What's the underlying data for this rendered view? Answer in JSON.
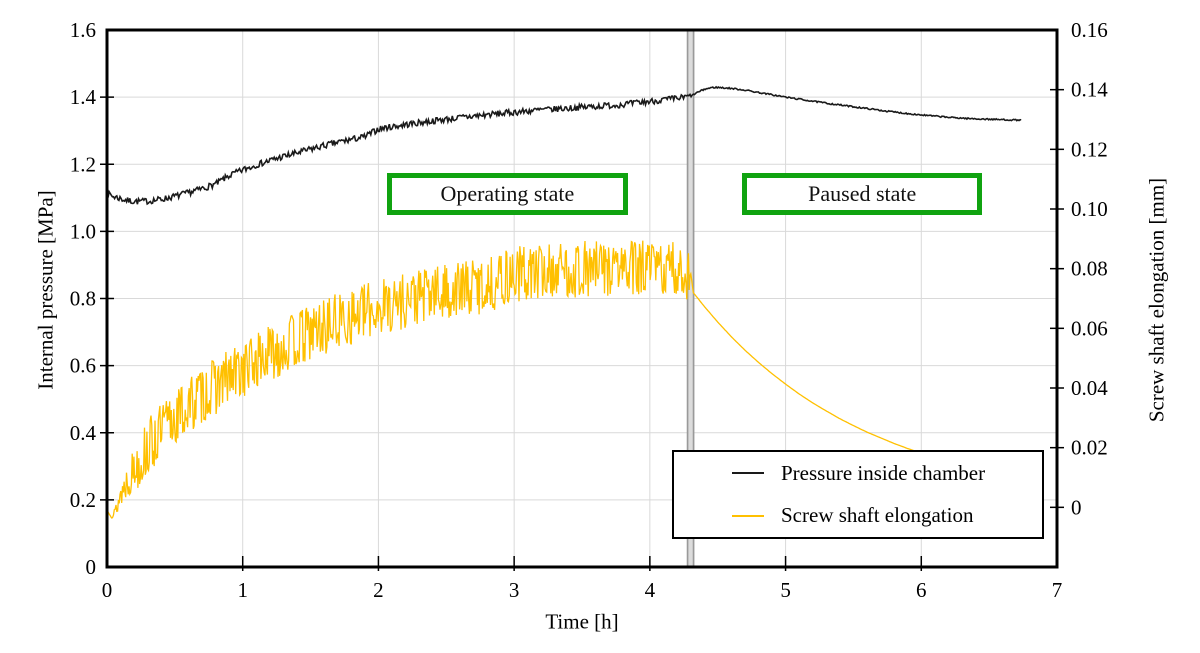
{
  "chart_data": {
    "type": "line",
    "title": "",
    "xlabel": "Time [h]",
    "xlim": [
      0,
      7
    ],
    "x_ticks": [
      0,
      1,
      2,
      3,
      4,
      5,
      6,
      7
    ],
    "grid": {
      "visible": true,
      "color": "#d9d9d9"
    },
    "axes": {
      "left": {
        "label": "Internal pressure [MPa]",
        "lim": [
          0,
          1.6
        ],
        "tick_step": 0.2,
        "ticks": [
          "0",
          "0.2",
          "0.4",
          "0.6",
          "0.8",
          "1.0",
          "1.2",
          "1.4",
          "1.6"
        ]
      },
      "right": {
        "label": "Screw shaft elongation [mm]",
        "lim": [
          -0.02,
          0.16
        ],
        "tick_step": 0.02,
        "ticks": [
          "0",
          "0.02",
          "0.04",
          "0.06",
          "0.08",
          "0.10",
          "0.12",
          "0.14",
          "0.16"
        ]
      }
    },
    "pause_marker": {
      "x": 4.3,
      "style": "double-vertical-line",
      "edge_color": "#9a9a9a",
      "inner_color": "#dcdcdc"
    },
    "annotations": [
      {
        "label": "Operating state",
        "border_color": "#10a310",
        "x_range": [
          2.06,
          3.84
        ],
        "y_left_range": [
          1.048,
          1.175
        ]
      },
      {
        "label": "Paused state",
        "border_color": "#10a310",
        "x_range": [
          4.68,
          6.45
        ],
        "y_left_range": [
          1.048,
          1.175
        ]
      }
    ],
    "legend": {
      "position": "bottom-right",
      "entries": [
        {
          "label": "Pressure inside chamber",
          "color": "#1a1a1a"
        },
        {
          "label": "Screw shaft elongation",
          "color": "#ffc000"
        }
      ]
    },
    "series": [
      {
        "name": "Pressure inside chamber",
        "axis": "left",
        "unit": "MPa",
        "color": "#1a1a1a",
        "stroke_width": 1.6,
        "noise": [
          {
            "until": 4.3,
            "amp": 0.009
          },
          {
            "until": 7,
            "amp": 0.002
          }
        ],
        "noise_ramp": 0,
        "anchors": [
          [
            0,
            1.112
          ],
          [
            0.07,
            1.101
          ],
          [
            0.15,
            1.092
          ],
          [
            0.22,
            1.089
          ],
          [
            0.3,
            1.09
          ],
          [
            0.4,
            1.096
          ],
          [
            0.5,
            1.104
          ],
          [
            0.6,
            1.115
          ],
          [
            0.7,
            1.127
          ],
          [
            0.8,
            1.141
          ],
          [
            0.9,
            1.166
          ],
          [
            1.0,
            1.183
          ],
          [
            1.1,
            1.198
          ],
          [
            1.2,
            1.211
          ],
          [
            1.3,
            1.223
          ],
          [
            1.4,
            1.234
          ],
          [
            1.5,
            1.245
          ],
          [
            1.6,
            1.2555
          ],
          [
            1.7,
            1.265
          ],
          [
            1.8,
            1.274
          ],
          [
            1.9,
            1.282
          ],
          [
            2.0,
            1.305
          ],
          [
            2.1,
            1.312
          ],
          [
            2.2,
            1.318
          ],
          [
            2.35,
            1.3265
          ],
          [
            2.5,
            1.334
          ],
          [
            2.65,
            1.341
          ],
          [
            2.8,
            1.3475
          ],
          [
            3.0,
            1.355
          ],
          [
            3.2,
            1.3615
          ],
          [
            3.4,
            1.367
          ],
          [
            3.6,
            1.3725
          ],
          [
            3.8,
            1.378
          ],
          [
            4.0,
            1.387
          ],
          [
            4.15,
            1.394
          ],
          [
            4.25,
            1.399
          ],
          [
            4.3,
            1.402
          ],
          [
            4.34,
            1.412
          ],
          [
            4.4,
            1.423
          ],
          [
            4.45,
            1.428
          ],
          [
            4.5,
            1.429
          ],
          [
            4.6,
            1.426
          ],
          [
            4.7,
            1.421
          ],
          [
            4.8,
            1.414
          ],
          [
            4.9,
            1.407
          ],
          [
            5.0,
            1.4
          ],
          [
            5.15,
            1.391
          ],
          [
            5.3,
            1.382
          ],
          [
            5.45,
            1.374
          ],
          [
            5.6,
            1.366
          ],
          [
            5.75,
            1.358
          ],
          [
            5.9,
            1.351
          ],
          [
            6.05,
            1.345
          ],
          [
            6.2,
            1.34
          ],
          [
            6.35,
            1.336
          ],
          [
            6.5,
            1.334
          ],
          [
            6.6,
            1.333
          ],
          [
            6.74,
            1.331
          ]
        ]
      },
      {
        "name": "Screw shaft elongation",
        "axis": "right",
        "unit": "mm",
        "color": "#ffc000",
        "stroke_width": 1.3,
        "noise": [
          {
            "until": 4.3,
            "amp": 0.0095
          },
          {
            "until": 7,
            "amp": 0
          }
        ],
        "noise_ramp": 0.25,
        "anchors": [
          [
            0,
            -0.001
          ],
          [
            0.05,
            -0.003
          ],
          [
            0.1,
            0.004
          ],
          [
            0.15,
            0.009
          ],
          [
            0.2,
            0.013
          ],
          [
            0.3,
            0.02
          ],
          [
            0.4,
            0.0255
          ],
          [
            0.5,
            0.03
          ],
          [
            0.6,
            0.034
          ],
          [
            0.7,
            0.0375
          ],
          [
            0.8,
            0.0405
          ],
          [
            0.9,
            0.0435
          ],
          [
            1.0,
            0.046
          ],
          [
            1.1,
            0.049
          ],
          [
            1.2,
            0.0515
          ],
          [
            1.35,
            0.055
          ],
          [
            1.5,
            0.0585
          ],
          [
            1.65,
            0.0615
          ],
          [
            1.8,
            0.064
          ],
          [
            2.0,
            0.067
          ],
          [
            2.2,
            0.0695
          ],
          [
            2.4,
            0.0715
          ],
          [
            2.6,
            0.073
          ],
          [
            2.8,
            0.0745
          ],
          [
            3.0,
            0.078
          ],
          [
            3.2,
            0.079
          ],
          [
            3.4,
            0.0795
          ],
          [
            3.6,
            0.08
          ],
          [
            3.8,
            0.08
          ],
          [
            4.0,
            0.08
          ],
          [
            4.15,
            0.0795
          ],
          [
            4.3,
            0.079
          ],
          [
            4.32,
            0.072
          ],
          [
            4.4,
            0.0674
          ],
          [
            4.5,
            0.0621
          ],
          [
            4.6,
            0.0572
          ],
          [
            4.7,
            0.0527
          ],
          [
            4.8,
            0.0486
          ],
          [
            4.9,
            0.0448
          ],
          [
            5.0,
            0.0413
          ],
          [
            5.1,
            0.038
          ],
          [
            5.2,
            0.035
          ],
          [
            5.3,
            0.0323
          ],
          [
            5.4,
            0.0297
          ],
          [
            5.5,
            0.0274
          ],
          [
            5.6,
            0.0252
          ],
          [
            5.7,
            0.0233
          ],
          [
            5.8,
            0.0214
          ],
          [
            5.9,
            0.0197
          ],
          [
            6.0,
            0.0182
          ]
        ]
      }
    ]
  }
}
